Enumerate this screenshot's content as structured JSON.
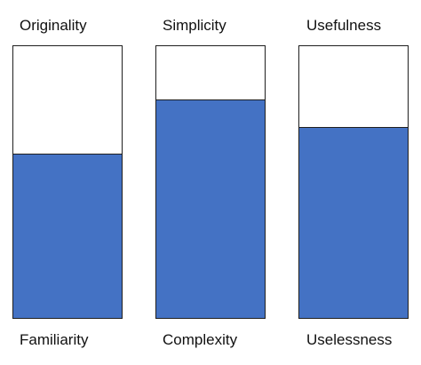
{
  "fill_color": "#4472c4",
  "meters": [
    {
      "top_label": "Originality",
      "bottom_label": "Familiarity",
      "fill_fraction": 0.6
    },
    {
      "top_label": "Simplicity",
      "bottom_label": "Complexity",
      "fill_fraction": 0.8
    },
    {
      "top_label": "Usefulness",
      "bottom_label": "Uselessness",
      "fill_fraction": 0.7
    }
  ]
}
